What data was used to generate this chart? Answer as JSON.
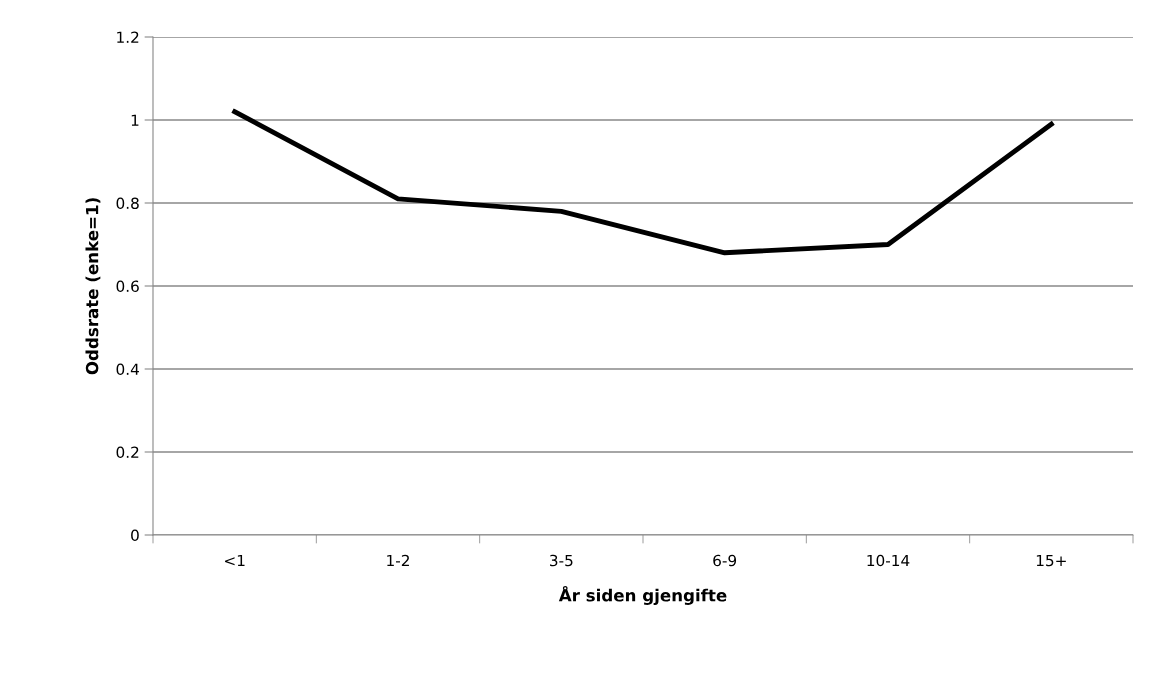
{
  "chart_data": {
    "type": "line",
    "xlabel": "År siden gjengifte",
    "ylabel": "Oddsrate (enke=1)",
    "categories": [
      "<1",
      "1-2",
      "3-5",
      "6-9",
      "10-14",
      "15+"
    ],
    "series": [
      {
        "color": "#000000",
        "values": [
          1.02,
          0.81,
          0.78,
          0.68,
          0.7,
          0.99
        ]
      }
    ],
    "ylim": [
      0,
      1.2
    ],
    "yticks": [
      0,
      0.2,
      0.4,
      0.6,
      0.8,
      1,
      1.2
    ],
    "grid": "y",
    "legend": false,
    "marker": "none",
    "line_style": "solid"
  }
}
